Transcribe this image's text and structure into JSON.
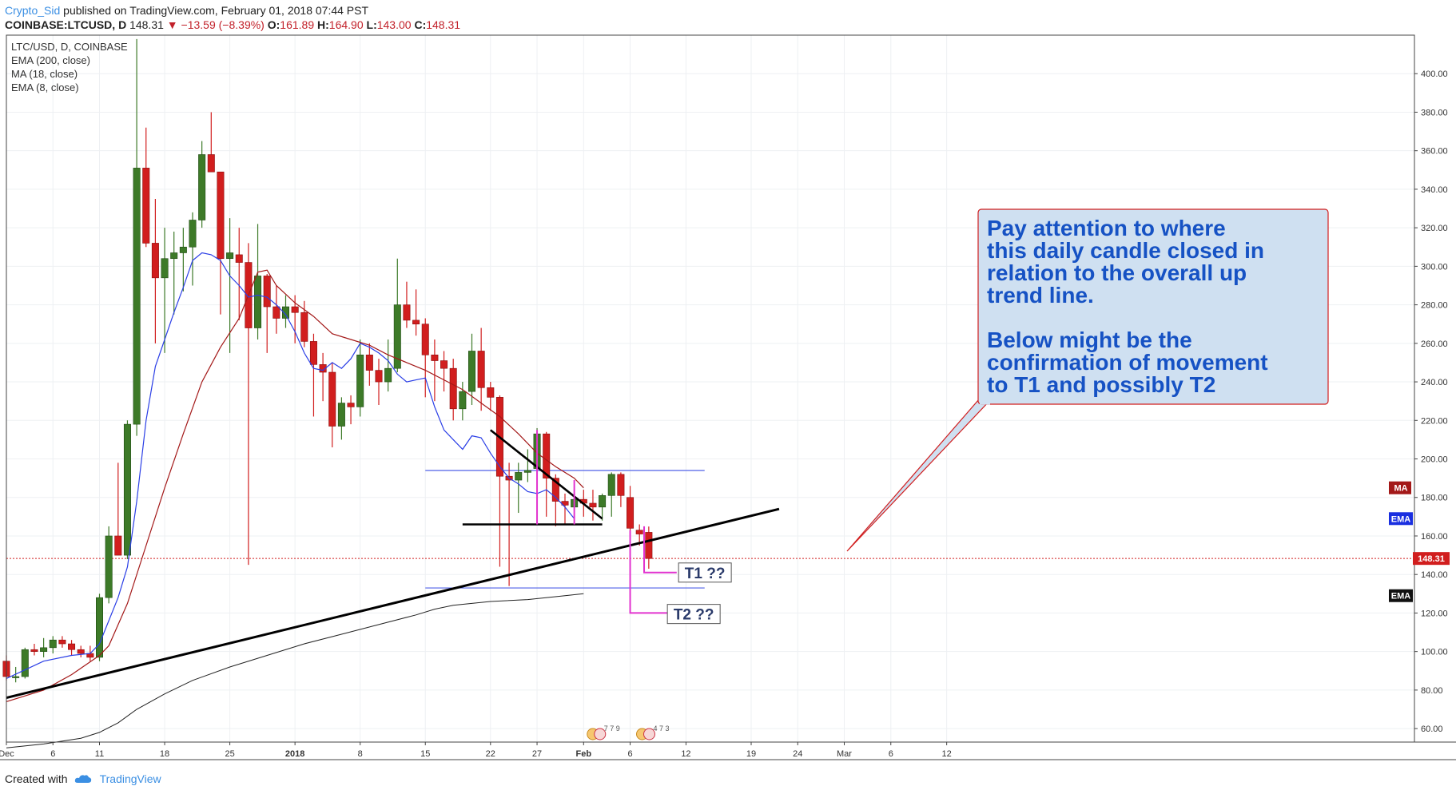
{
  "header": {
    "author": "Crypto_Sid",
    "published": "published on TradingView.com, February 01, 2018 07:44 PST",
    "symbol": "COINBASE:LTCUSD, D",
    "last": "148.31",
    "change": "▼ −13.59 (−8.39%)",
    "o_label": "O:",
    "o": "161.89",
    "h_label": "H:",
    "h": "164.90",
    "l_label": "L:",
    "l": "143.00",
    "c_label": "C:",
    "c": "148.31"
  },
  "legend": {
    "symbol": "LTC/USD, D, COINBASE",
    "ind1": "EMA (200, close)",
    "ind2": "MA (18, close)",
    "ind3": "EMA (8, close)"
  },
  "footer": {
    "created": "Created with",
    "brand": "TradingView"
  },
  "annotation": {
    "lines": [
      "Pay attention to where",
      "this daily candle closed in",
      "relation to the overall up",
      "trend line.",
      "",
      "Below might be the",
      "confirmation of movement",
      "to T1 and possibly T2"
    ]
  },
  "targets": {
    "t1": "T1 ??",
    "t2": "T2 ??"
  },
  "badges": {
    "ma": "MA",
    "ema_blue": "EMA",
    "ema_black": "EMA",
    "last_price": "148.31"
  },
  "event_labels": [
    "7 7 9",
    "4 7 3"
  ],
  "colors": {
    "up": "#3d7a28",
    "down": "#d11e1e",
    "ema8": "#2a3ee6",
    "ma18": "#a31818",
    "ema200": "#222222",
    "magenta": "#e233cf",
    "note_bg": "#cfe0f1",
    "note_text": "#1652c4"
  },
  "chart_data": {
    "type": "candlestick",
    "title": "LTC/USD, D, COINBASE",
    "y_ticks": [
      60,
      80,
      100,
      120,
      140,
      160,
      180,
      200,
      220,
      240,
      260,
      280,
      300,
      320,
      340,
      360,
      380,
      400
    ],
    "ylim": [
      53,
      420
    ],
    "x_ticks": [
      {
        "label": "Dec",
        "day": 0
      },
      {
        "label": "6",
        "day": 5
      },
      {
        "label": "11",
        "day": 10
      },
      {
        "label": "18",
        "day": 17
      },
      {
        "label": "25",
        "day": 24
      },
      {
        "label": "2018",
        "day": 31
      },
      {
        "label": "8",
        "day": 38
      },
      {
        "label": "15",
        "day": 45
      },
      {
        "label": "22",
        "day": 52
      },
      {
        "label": "27",
        "day": 57
      },
      {
        "label": "Feb",
        "day": 62
      },
      {
        "label": "6",
        "day": 67
      },
      {
        "label": "12",
        "day": 73
      },
      {
        "label": "19",
        "day": 80
      },
      {
        "label": "24",
        "day": 85
      },
      {
        "label": "Mar",
        "day": 90
      },
      {
        "label": "6",
        "day": 95
      },
      {
        "label": "12",
        "day": 101
      }
    ],
    "candles": [
      [
        95,
        98,
        85,
        87
      ],
      [
        87,
        92,
        84,
        87
      ],
      [
        87,
        102,
        86,
        101
      ],
      [
        101,
        104,
        98,
        100
      ],
      [
        100,
        107,
        97,
        102
      ],
      [
        102,
        108,
        99,
        106
      ],
      [
        106,
        108,
        102,
        104
      ],
      [
        104,
        106,
        98,
        101
      ],
      [
        101,
        103,
        97,
        99
      ],
      [
        99,
        103,
        95,
        97
      ],
      [
        97,
        130,
        95,
        128
      ],
      [
        128,
        165,
        125,
        160
      ],
      [
        160,
        198,
        150,
        150
      ],
      [
        150,
        220,
        148,
        218
      ],
      [
        218,
        418,
        212,
        351
      ],
      [
        351,
        372,
        310,
        312
      ],
      [
        312,
        335,
        260,
        294
      ],
      [
        294,
        320,
        255,
        304
      ],
      [
        304,
        318,
        275,
        307
      ],
      [
        307,
        320,
        287,
        310
      ],
      [
        310,
        328,
        290,
        324
      ],
      [
        324,
        365,
        320,
        358
      ],
      [
        358,
        380,
        350,
        349
      ],
      [
        349,
        348,
        275,
        304
      ],
      [
        304,
        325,
        255,
        307
      ],
      [
        306,
        320,
        272,
        302
      ],
      [
        302,
        312,
        145,
        268
      ],
      [
        268,
        322,
        262,
        295
      ],
      [
        295,
        296,
        255,
        279
      ],
      [
        279,
        290,
        265,
        273
      ],
      [
        273,
        285,
        268,
        279
      ],
      [
        279,
        285,
        260,
        276
      ],
      [
        276,
        282,
        258,
        261
      ],
      [
        261,
        265,
        222,
        249
      ],
      [
        249,
        255,
        230,
        245
      ],
      [
        245,
        250,
        206,
        217
      ],
      [
        217,
        232,
        210,
        229
      ],
      [
        229,
        233,
        218,
        227
      ],
      [
        227,
        262,
        222,
        254
      ],
      [
        254,
        260,
        238,
        246
      ],
      [
        246,
        252,
        228,
        240
      ],
      [
        240,
        262,
        235,
        247
      ],
      [
        247,
        304,
        245,
        280
      ],
      [
        280,
        292,
        268,
        272
      ],
      [
        272,
        288,
        264,
        270
      ],
      [
        270,
        273,
        232,
        254
      ],
      [
        254,
        262,
        230,
        251
      ],
      [
        251,
        256,
        235,
        247
      ],
      [
        247,
        252,
        220,
        226
      ],
      [
        226,
        240,
        220,
        235
      ],
      [
        235,
        265,
        228,
        256
      ],
      [
        256,
        268,
        225,
        237
      ],
      [
        237,
        240,
        225,
        232
      ],
      [
        232,
        233,
        144,
        191
      ],
      [
        191,
        198,
        134,
        189
      ],
      [
        189,
        198,
        172,
        193
      ],
      [
        193,
        205,
        188,
        194
      ],
      [
        195,
        216,
        192,
        213
      ],
      [
        213,
        214,
        170,
        190
      ],
      [
        190,
        192,
        165,
        178
      ],
      [
        178,
        182,
        166,
        176
      ],
      [
        175,
        186,
        172,
        179
      ],
      [
        179,
        184,
        170,
        177
      ],
      [
        177,
        184,
        168,
        175
      ],
      [
        175,
        182,
        168,
        181
      ],
      [
        181,
        193,
        170,
        192
      ],
      [
        192,
        193,
        175,
        181
      ],
      [
        180,
        186,
        160,
        164
      ],
      [
        163,
        166,
        155,
        161
      ],
      [
        161.89,
        164.9,
        143,
        148.31
      ]
    ],
    "ema8": [
      [
        0,
        86
      ],
      [
        4,
        95
      ],
      [
        7,
        98
      ],
      [
        9,
        99
      ],
      [
        10,
        104
      ],
      [
        12,
        128
      ],
      [
        13,
        144
      ],
      [
        14,
        178
      ],
      [
        15,
        220
      ],
      [
        16,
        248
      ],
      [
        17,
        262
      ],
      [
        18,
        276
      ],
      [
        19,
        289
      ],
      [
        20,
        303
      ],
      [
        21,
        307
      ],
      [
        22,
        306
      ],
      [
        23,
        303
      ],
      [
        24,
        295
      ],
      [
        25,
        290
      ],
      [
        26,
        284
      ],
      [
        27,
        285
      ],
      [
        28,
        284
      ],
      [
        29,
        280
      ],
      [
        30,
        275
      ],
      [
        31,
        266
      ],
      [
        32,
        255
      ],
      [
        33,
        247
      ],
      [
        34,
        246
      ],
      [
        35,
        250
      ],
      [
        36,
        247
      ],
      [
        37,
        252
      ],
      [
        38,
        260
      ],
      [
        39,
        258
      ],
      [
        40,
        255
      ],
      [
        41,
        251
      ],
      [
        42,
        244
      ],
      [
        43,
        240
      ],
      [
        44,
        241
      ],
      [
        45,
        242
      ],
      [
        46,
        227
      ],
      [
        47,
        215
      ],
      [
        48,
        210
      ],
      [
        49,
        205
      ],
      [
        50,
        212
      ],
      [
        51,
        211
      ],
      [
        52,
        203
      ],
      [
        53,
        196
      ],
      [
        54,
        190
      ],
      [
        55,
        187
      ],
      [
        56,
        183
      ],
      [
        57,
        182
      ],
      [
        58,
        184
      ],
      [
        59,
        180
      ],
      [
        60,
        175
      ],
      [
        61,
        169
      ]
    ],
    "ma18": [
      [
        0,
        74
      ],
      [
        4,
        80
      ],
      [
        7,
        88
      ],
      [
        10,
        98
      ],
      [
        11,
        103
      ],
      [
        13,
        125
      ],
      [
        15,
        155
      ],
      [
        17,
        185
      ],
      [
        19,
        213
      ],
      [
        21,
        240
      ],
      [
        23,
        258
      ],
      [
        25,
        273
      ],
      [
        26,
        285
      ],
      [
        27,
        297
      ],
      [
        28,
        298
      ],
      [
        29,
        290
      ],
      [
        31,
        281
      ],
      [
        33,
        274
      ],
      [
        35,
        265
      ],
      [
        37,
        262
      ],
      [
        39,
        259
      ],
      [
        41,
        254
      ],
      [
        43,
        250
      ],
      [
        45,
        246
      ],
      [
        47,
        241
      ],
      [
        49,
        236
      ],
      [
        51,
        229
      ],
      [
        53,
        222
      ],
      [
        55,
        213
      ],
      [
        57,
        203
      ],
      [
        59,
        196
      ],
      [
        61,
        190
      ],
      [
        62,
        185
      ]
    ],
    "ema200": [
      [
        0,
        50
      ],
      [
        4,
        52
      ],
      [
        8,
        55
      ],
      [
        10,
        58
      ],
      [
        12,
        63
      ],
      [
        14,
        70
      ],
      [
        17,
        78
      ],
      [
        20,
        85
      ],
      [
        24,
        92
      ],
      [
        28,
        98
      ],
      [
        32,
        104
      ],
      [
        36,
        109
      ],
      [
        40,
        114
      ],
      [
        44,
        119
      ],
      [
        46,
        122
      ],
      [
        48,
        124
      ],
      [
        52,
        126
      ],
      [
        56,
        127
      ],
      [
        60,
        129
      ],
      [
        62,
        130
      ]
    ],
    "drawings": {
      "uptrend": [
        [
          0,
          76
        ],
        [
          83,
          174
        ]
      ],
      "descending": [
        [
          52,
          215
        ],
        [
          64,
          169
        ]
      ],
      "horizontal": [
        [
          49,
          166
        ],
        [
          64,
          166
        ]
      ],
      "box_top": [
        [
          45,
          194
        ],
        [
          75,
          194
        ]
      ],
      "box_bottom": [
        [
          45,
          133
        ],
        [
          75,
          133
        ]
      ],
      "last_price_line": 148.31
    }
  }
}
